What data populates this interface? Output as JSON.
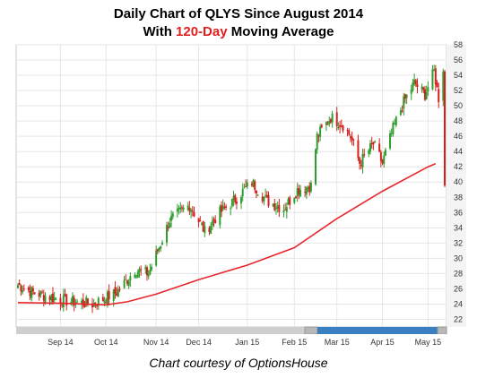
{
  "title": {
    "line1": "Daily Chart of QLYS Since August 2014",
    "line2_prefix": "With ",
    "line2_highlight": "120-Day",
    "line2_suffix": " Moving Average"
  },
  "credit": "Chart courtesy of OptionsHouse",
  "colors": {
    "up": "#2e9e2e",
    "down": "#d62020",
    "ma": "#e8262d",
    "grid": "#e6e6e6",
    "axis_bg": "#f4f4f4",
    "scroll_thumb": "#3a7fc2",
    "scroll_track": "#cfcfcf"
  },
  "chart_data": {
    "type": "candlestick",
    "x_tick_labels": [
      "Sep 14",
      "Oct 14",
      "Nov 14",
      "Dec 14",
      "Jan 15",
      "Feb 15",
      "Mar 15",
      "Apr 15",
      "May 15"
    ],
    "y_tick_labels": [
      22,
      24,
      26,
      28,
      30,
      32,
      34,
      36,
      38,
      40,
      42,
      44,
      46,
      48,
      50,
      52,
      54,
      56,
      58
    ],
    "ylim": [
      21,
      58
    ],
    "grid": true,
    "price_anchors": [
      {
        "date": "2014-08-04",
        "price": 26.5
      },
      {
        "date": "2014-08-14",
        "price": 25.5
      },
      {
        "date": "2014-09-02",
        "price": 24.5
      },
      {
        "date": "2014-09-22",
        "price": 24.0
      },
      {
        "date": "2014-10-08",
        "price": 25.5
      },
      {
        "date": "2014-10-20",
        "price": 28.5
      },
      {
        "date": "2014-10-29",
        "price": 28.0
      },
      {
        "date": "2014-11-12",
        "price": 35.0
      },
      {
        "date": "2014-11-25",
        "price": 37.0
      },
      {
        "date": "2014-12-05",
        "price": 33.5
      },
      {
        "date": "2014-12-15",
        "price": 36.0
      },
      {
        "date": "2014-12-24",
        "price": 37.5
      },
      {
        "date": "2015-01-05",
        "price": 40.0
      },
      {
        "date": "2015-01-15",
        "price": 37.5
      },
      {
        "date": "2015-01-26",
        "price": 36.5
      },
      {
        "date": "2015-02-04",
        "price": 39.0
      },
      {
        "date": "2015-02-13",
        "price": 39.5
      },
      {
        "date": "2015-02-17",
        "price": 46.0
      },
      {
        "date": "2015-02-26",
        "price": 48.5
      },
      {
        "date": "2015-03-06",
        "price": 47.5
      },
      {
        "date": "2015-03-11",
        "price": 46.0
      },
      {
        "date": "2015-03-17",
        "price": 42.5
      },
      {
        "date": "2015-03-26",
        "price": 45.0
      },
      {
        "date": "2015-04-01",
        "price": 42.5
      },
      {
        "date": "2015-04-08",
        "price": 47.0
      },
      {
        "date": "2015-04-15",
        "price": 50.5
      },
      {
        "date": "2015-04-22",
        "price": 53.0
      },
      {
        "date": "2015-04-29",
        "price": 51.5
      },
      {
        "date": "2015-05-05",
        "price": 54.5
      },
      {
        "date": "2015-05-08",
        "price": 51.0
      },
      {
        "date": "2015-05-11",
        "price": 55.0
      },
      {
        "date": "2015-05-12",
        "price": 39.5
      }
    ],
    "moving_average_120day": [
      {
        "date": "2014-08-04",
        "value": 24.2
      },
      {
        "date": "2014-09-02",
        "value": 24.1
      },
      {
        "date": "2014-10-01",
        "value": 23.9
      },
      {
        "date": "2014-10-15",
        "value": 24.3
      },
      {
        "date": "2014-11-03",
        "value": 25.3
      },
      {
        "date": "2014-12-01",
        "value": 27.2
      },
      {
        "date": "2015-01-02",
        "value": 29.1
      },
      {
        "date": "2015-02-02",
        "value": 31.4
      },
      {
        "date": "2015-03-02",
        "value": 35.2
      },
      {
        "date": "2015-04-01",
        "value": 38.8
      },
      {
        "date": "2015-05-01",
        "value": 42.0
      },
      {
        "date": "2015-05-06",
        "value": 42.4
      }
    ]
  }
}
